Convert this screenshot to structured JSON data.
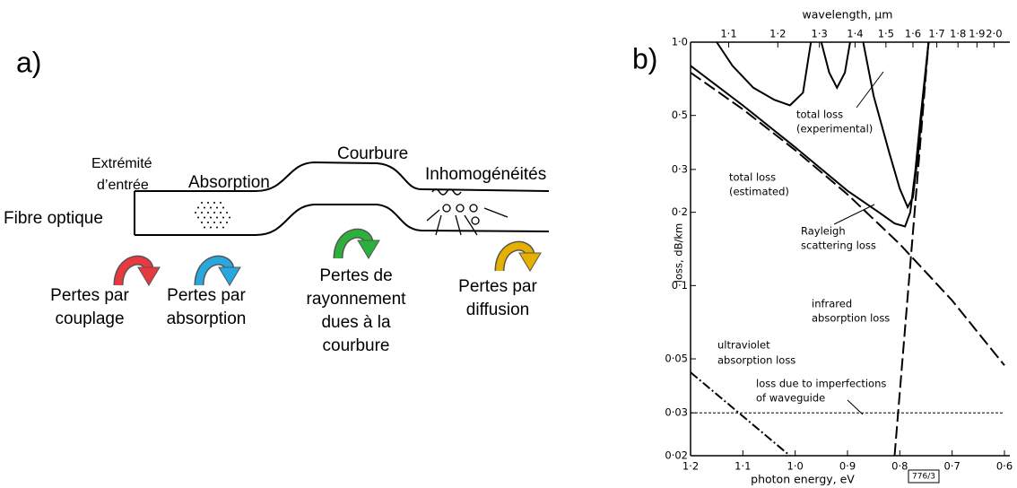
{
  "diagram": {
    "panel_label": "a)",
    "input_end": [
      "Extrémité",
      "d’entrée"
    ],
    "absorption": "Absorption",
    "bend": "Courbure",
    "inhomogeneities": "Inhomogénéités",
    "fiber": "Fibre optique",
    "losses": [
      {
        "lines": [
          "Pertes par",
          "couplage"
        ]
      },
      {
        "lines": [
          "Pertes par",
          "absorption"
        ]
      },
      {
        "lines": [
          "Pertes de",
          "rayonnement",
          "dues à la",
          "courbure"
        ]
      },
      {
        "lines": [
          "Pertes par",
          "diffusion"
        ]
      }
    ]
  },
  "chart_data": {
    "type": "line",
    "panel_label": "b)",
    "x_label": "photon energy, eV",
    "x2_label": "wavelength, µm",
    "y_label": "loss, dB/km",
    "log_y": true,
    "xlim": [
      1.2,
      0.6
    ],
    "ylim": [
      0.02,
      1.0
    ],
    "xticks": [
      {
        "value": 1.2,
        "label": "1·2"
      },
      {
        "value": 1.1,
        "label": "1·1"
      },
      {
        "value": 1.0,
        "label": "1·0"
      },
      {
        "value": 0.9,
        "label": "0·9"
      },
      {
        "value": 0.8,
        "label": "0·8"
      },
      {
        "value": 0.7,
        "label": "0·7"
      },
      {
        "value": 0.6,
        "label": "0·6"
      }
    ],
    "x2ticks": [
      {
        "value": 1.1,
        "label": "1·1"
      },
      {
        "value": 1.2,
        "label": "1·2"
      },
      {
        "value": 1.3,
        "label": "1·3"
      },
      {
        "value": 1.4,
        "label": "1·4"
      },
      {
        "value": 1.5,
        "label": "1·5"
      },
      {
        "value": 1.6,
        "label": "1·6"
      },
      {
        "value": 1.7,
        "label": "1·7"
      },
      {
        "value": 1.8,
        "label": "1·8"
      },
      {
        "value": 1.9,
        "label": "1·9"
      },
      {
        "value": 2.0,
        "label": "2·0"
      }
    ],
    "yticks": [
      {
        "value": 1.0,
        "label": "1·0"
      },
      {
        "value": 0.5,
        "label": "0·5"
      },
      {
        "value": 0.3,
        "label": "0·3"
      },
      {
        "value": 0.2,
        "label": "0·2"
      },
      {
        "value": 0.1,
        "label": "0·1"
      },
      {
        "value": 0.05,
        "label": "0·05"
      },
      {
        "value": 0.03,
        "label": "0·03"
      },
      {
        "value": 0.02,
        "label": "0·02"
      }
    ],
    "series": [
      {
        "color": "#000000",
        "style": "solid",
        "x": [
          1.15,
          1.12,
          1.08,
          1.04,
          1.01,
          0.985,
          0.97,
          0.96,
          0.95,
          0.935,
          0.92,
          0.905,
          0.895,
          0.88,
          0.87,
          0.85,
          0.82,
          0.8,
          0.785,
          0.775,
          0.765,
          0.755,
          0.745
        ],
        "values": [
          1.0,
          0.8,
          0.65,
          0.58,
          0.55,
          0.62,
          1.0,
          null,
          1.0,
          0.75,
          0.65,
          0.75,
          1.0,
          null,
          1.0,
          0.6,
          0.35,
          0.25,
          0.21,
          0.23,
          0.35,
          0.6,
          1.0
        ]
      },
      {
        "color": "#000000",
        "style": "solid",
        "x": [
          1.2,
          1.1,
          1.0,
          0.9,
          0.84,
          0.81,
          0.79,
          0.78,
          0.77,
          0.76,
          0.745
        ],
        "values": [
          0.8,
          0.55,
          0.37,
          0.245,
          0.2,
          0.18,
          0.175,
          0.2,
          0.3,
          0.5,
          1.0
        ]
      },
      {
        "color": "#000000",
        "style": "dashed",
        "x": [
          1.2,
          1.1,
          1.0,
          0.9,
          0.8,
          0.7,
          0.6
        ],
        "values": [
          0.75,
          0.53,
          0.36,
          0.237,
          0.148,
          0.0868,
          0.047
        ]
      },
      {
        "color": "#000000",
        "style": "dashed",
        "x": [
          0.81,
          0.745
        ],
        "values": [
          0.02,
          1.0
        ]
      },
      {
        "color": "#000000",
        "style": "dashdot",
        "x": [
          1.2,
          1.01
        ],
        "values": [
          0.044,
          0.02
        ]
      },
      {
        "color": "#000000",
        "style": "dotted",
        "x": [
          1.2,
          0.6
        ],
        "values": [
          0.03,
          0.03
        ]
      }
    ],
    "annotations": [
      {
        "lines": [
          "total loss",
          "(experimental)"
        ]
      },
      {
        "lines": [
          "total loss",
          "(estimated)"
        ]
      },
      {
        "lines": [
          "Rayleigh",
          "scattering loss"
        ]
      },
      {
        "lines": [
          "infrared",
          "absorption loss"
        ]
      },
      {
        "lines": [
          "ultraviolet",
          "absorption loss"
        ]
      },
      {
        "lines": [
          "loss due to imperfections",
          "of waveguide"
        ]
      }
    ],
    "figure_code": "776/3"
  }
}
